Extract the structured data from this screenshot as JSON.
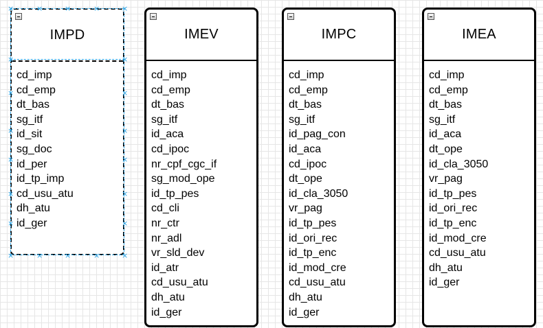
{
  "entities": [
    {
      "id": "impd",
      "title": "IMPD",
      "selected": true,
      "fields": [
        "cd_imp",
        "cd_emp",
        "dt_bas",
        "sg_itf",
        "id_sit",
        "sg_doc",
        "id_per",
        "id_tp_imp",
        "cd_usu_atu",
        "dh_atu",
        "id_ger"
      ]
    },
    {
      "id": "imev",
      "title": "IMEV",
      "selected": false,
      "fields": [
        "cd_imp",
        "cd_emp",
        "dt_bas",
        "sg_itf",
        "id_aca",
        "cd_ipoc",
        "nr_cpf_cgc_if",
        "sg_mod_ope",
        "id_tp_pes",
        "cd_cli",
        "nr_ctr",
        "nr_adl",
        "vr_sld_dev",
        "id_atr",
        "cd_usu_atu",
        "dh_atu",
        "id_ger"
      ]
    },
    {
      "id": "impc",
      "title": "IMPC",
      "selected": false,
      "fields": [
        "cd_imp",
        "cd_emp",
        "dt_bas",
        "sg_itf",
        "id_pag_con",
        "id_aca",
        "cd_ipoc",
        "dt_ope",
        "id_cla_3050",
        "vr_pag",
        "id_tp_pes",
        "id_ori_rec",
        "id_tp_enc",
        "id_mod_cre",
        "cd_usu_atu",
        "dh_atu",
        "id_ger"
      ]
    },
    {
      "id": "imea",
      "title": "IMEA",
      "selected": false,
      "fields": [
        "cd_imp",
        "cd_emp",
        "dt_bas",
        "sg_itf",
        "id_aca",
        "dt_ope",
        "id_cla_3050",
        "vr_pag",
        "id_tp_pes",
        "id_ori_rec",
        "id_tp_enc",
        "id_mod_cre",
        "cd_usu_atu",
        "dh_atu",
        "id_ger"
      ]
    }
  ],
  "icons": {
    "collapse": "collapse-icon",
    "selection_handle": "resize-handle-icon"
  },
  "colors": {
    "selection": "#29a3e6",
    "grid": "#e6e6e6",
    "border": "#000000"
  }
}
